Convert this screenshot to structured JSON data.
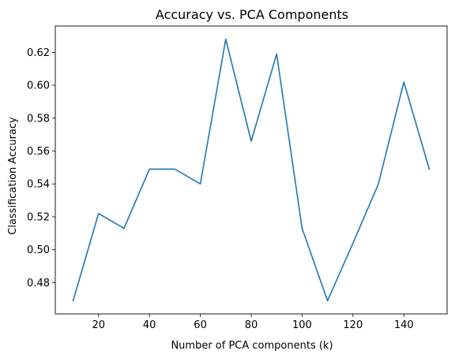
{
  "chart_data": {
    "type": "line",
    "title": "Accuracy vs. PCA Components",
    "xlabel": "Number of PCA components (k)",
    "ylabel": "Classification Accuracy",
    "xlim": [
      3,
      157
    ],
    "ylim": [
      0.461,
      0.636
    ],
    "xticks": [
      20,
      40,
      60,
      80,
      100,
      120,
      140
    ],
    "yticks": [
      0.48,
      0.5,
      0.52,
      0.54,
      0.56,
      0.58,
      0.6,
      0.62
    ],
    "grid": false,
    "series": [
      {
        "color": "#1f77b4",
        "x": [
          10,
          20,
          30,
          40,
          50,
          60,
          70,
          80,
          90,
          100,
          110,
          120,
          130,
          140,
          150
        ],
        "y": [
          0.469,
          0.522,
          0.513,
          0.549,
          0.549,
          0.54,
          0.628,
          0.566,
          0.619,
          0.513,
          0.469,
          0.504,
          0.54,
          0.602,
          0.549
        ]
      }
    ]
  }
}
